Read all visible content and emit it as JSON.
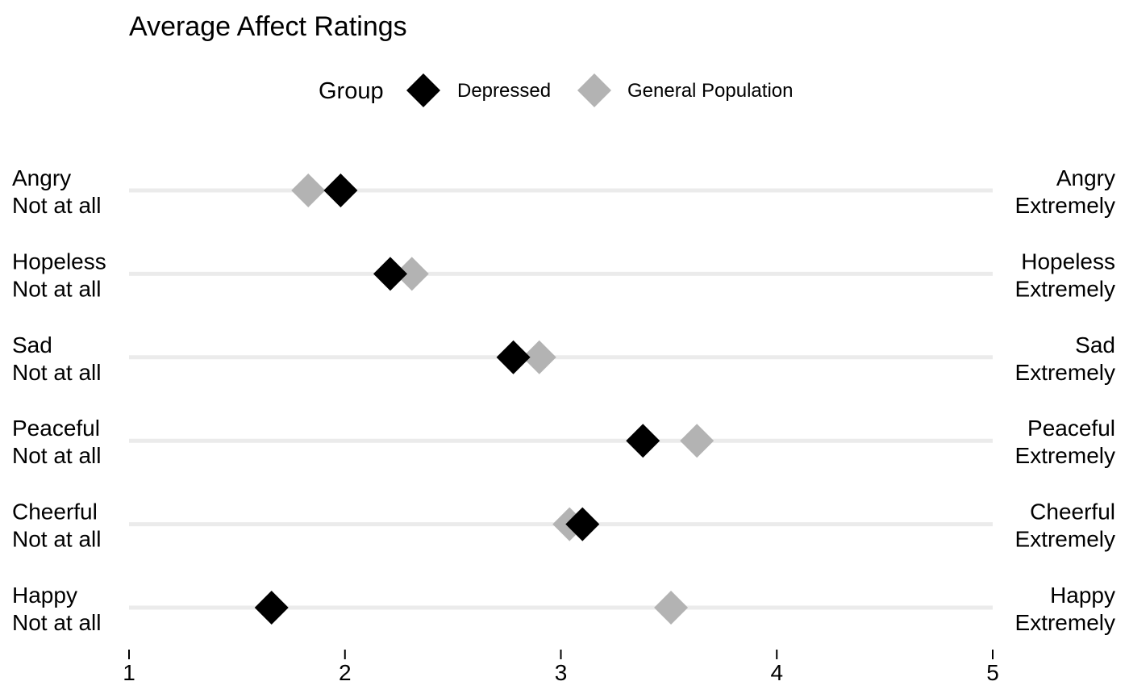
{
  "chart_data": {
    "type": "scatter",
    "title": "Average Affect Ratings",
    "legend": {
      "title": "Group",
      "placement": "top",
      "entries": [
        {
          "name": "Depressed",
          "color": "#000000"
        },
        {
          "name": "General Population",
          "color": "#b3b3b3"
        }
      ]
    },
    "marker": "diamond",
    "xlim": [
      1,
      5
    ],
    "x_ticks": [
      1,
      2,
      3,
      4,
      5
    ],
    "grid": false,
    "categories": [
      "Angry",
      "Hopeless",
      "Sad",
      "Peaceful",
      "Cheerful",
      "Happy"
    ],
    "left_anchor": "Not at all",
    "right_anchor": "Extremely",
    "series": [
      {
        "name": "Depressed",
        "color": "#000000",
        "values": [
          1.98,
          2.21,
          2.78,
          3.38,
          3.1,
          1.66
        ]
      },
      {
        "name": "General Population",
        "color": "#b3b3b3",
        "values": [
          1.83,
          2.31,
          2.9,
          3.63,
          3.04,
          3.51
        ]
      }
    ]
  }
}
